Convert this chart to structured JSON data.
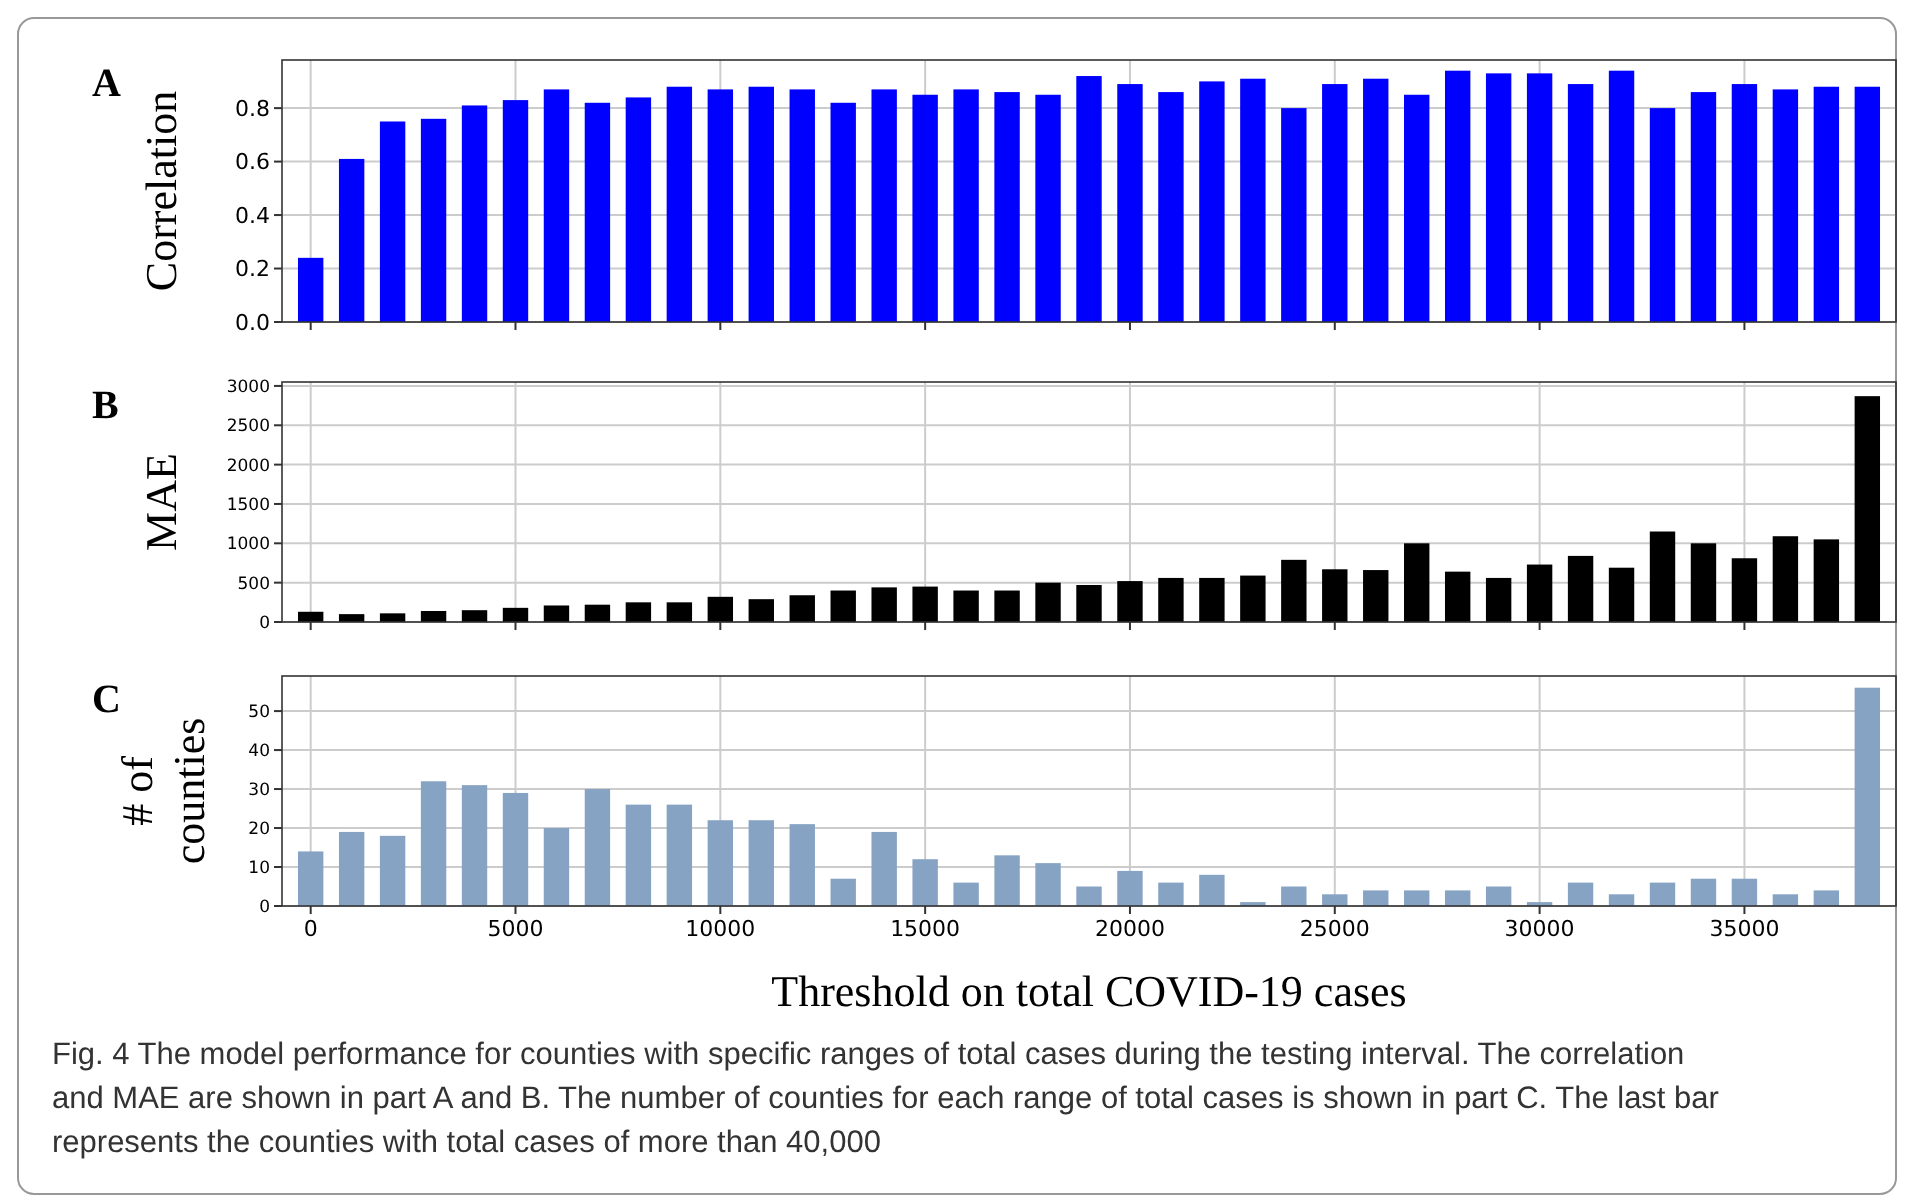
{
  "chart_data": [
    {
      "type": "bar",
      "title": "A",
      "ylabel": "Correlation",
      "x": [
        0,
        1000,
        2000,
        3000,
        4000,
        5000,
        6000,
        7000,
        8000,
        9000,
        10000,
        11000,
        12000,
        13000,
        14000,
        15000,
        16000,
        17000,
        18000,
        19000,
        20000,
        21000,
        22000,
        23000,
        24000,
        25000,
        26000,
        27000,
        28000,
        29000,
        30000,
        31000,
        32000,
        33000,
        34000,
        35000,
        36000,
        37000,
        38000
      ],
      "series": [
        {
          "color": "#0000ff",
          "values": [
            0.24,
            0.61,
            0.75,
            0.76,
            0.81,
            0.83,
            0.87,
            0.82,
            0.84,
            0.88,
            0.87,
            0.88,
            0.87,
            0.82,
            0.87,
            0.85,
            0.87,
            0.86,
            0.85,
            0.92,
            0.89,
            0.86,
            0.9,
            0.91,
            0.8,
            0.89,
            0.91,
            0.85,
            0.94,
            0.93,
            0.93,
            0.89,
            0.94,
            0.8,
            0.86,
            0.89,
            0.87,
            0.88,
            0.88
          ]
        }
      ],
      "xlim": [
        -700,
        38700
      ],
      "xticks": [
        0,
        5000,
        10000,
        15000,
        20000,
        25000,
        30000,
        35000
      ],
      "ylim": [
        0,
        0.98
      ],
      "yticks": [
        {
          "value": 0,
          "label": "0.0"
        },
        0.2,
        0.4,
        0.6,
        0.8
      ],
      "grid": true,
      "tick_labels": "y"
    },
    {
      "type": "bar",
      "title": "B",
      "ylabel": "MAE",
      "x": [
        0,
        1000,
        2000,
        3000,
        4000,
        5000,
        6000,
        7000,
        8000,
        9000,
        10000,
        11000,
        12000,
        13000,
        14000,
        15000,
        16000,
        17000,
        18000,
        19000,
        20000,
        21000,
        22000,
        23000,
        24000,
        25000,
        26000,
        27000,
        28000,
        29000,
        30000,
        31000,
        32000,
        33000,
        34000,
        35000,
        36000,
        37000,
        38000
      ],
      "series": [
        {
          "color": "#000000",
          "values": [
            130,
            100,
            110,
            140,
            150,
            180,
            210,
            220,
            250,
            250,
            320,
            290,
            340,
            400,
            440,
            450,
            400,
            400,
            500,
            470,
            520,
            560,
            560,
            590,
            790,
            670,
            660,
            1000,
            640,
            560,
            730,
            840,
            690,
            1150,
            1000,
            810,
            1090,
            1050,
            2870
          ]
        }
      ],
      "xlim": [
        -700,
        38700
      ],
      "xticks": [
        0,
        5000,
        10000,
        15000,
        20000,
        25000,
        30000,
        35000
      ],
      "ylim": [
        0,
        3050
      ],
      "yticks": [
        0,
        500,
        1000,
        1500,
        2000,
        2500,
        3000
      ],
      "grid": true,
      "tick_labels": "y"
    },
    {
      "type": "bar",
      "title": "C",
      "ylabel": "# of\ncounties",
      "xlabel": "Threshold on total COVID-19 cases",
      "x": [
        0,
        1000,
        2000,
        3000,
        4000,
        5000,
        6000,
        7000,
        8000,
        9000,
        10000,
        11000,
        12000,
        13000,
        14000,
        15000,
        16000,
        17000,
        18000,
        19000,
        20000,
        21000,
        22000,
        23000,
        24000,
        25000,
        26000,
        27000,
        28000,
        29000,
        30000,
        31000,
        32000,
        33000,
        34000,
        35000,
        36000,
        37000,
        38000
      ],
      "series": [
        {
          "color": "#86a3c3",
          "values": [
            14,
            19,
            18,
            32,
            31,
            29,
            20,
            30,
            26,
            26,
            22,
            22,
            21,
            7,
            19,
            12,
            6,
            13,
            11,
            5,
            9,
            6,
            8,
            1,
            5,
            3,
            4,
            4,
            4,
            5,
            1,
            6,
            3,
            6,
            7,
            7,
            3,
            4,
            56
          ]
        }
      ],
      "xlim": [
        -700,
        38700
      ],
      "xticks": [
        0,
        5000,
        10000,
        15000,
        20000,
        25000,
        30000,
        35000
      ],
      "ylim": [
        0,
        59
      ],
      "yticks": [
        0,
        10,
        20,
        30,
        40,
        50
      ],
      "grid": true,
      "annotations": [
        "Fig. 4  The model performance for counties with specific ranges of total cases during the testing interval. The correlation and MAE are shown in part A and B. The number of counties for each range of total cases is shown in part C. The last bar represents the counties with total cases of more than 40,000"
      ]
    }
  ]
}
